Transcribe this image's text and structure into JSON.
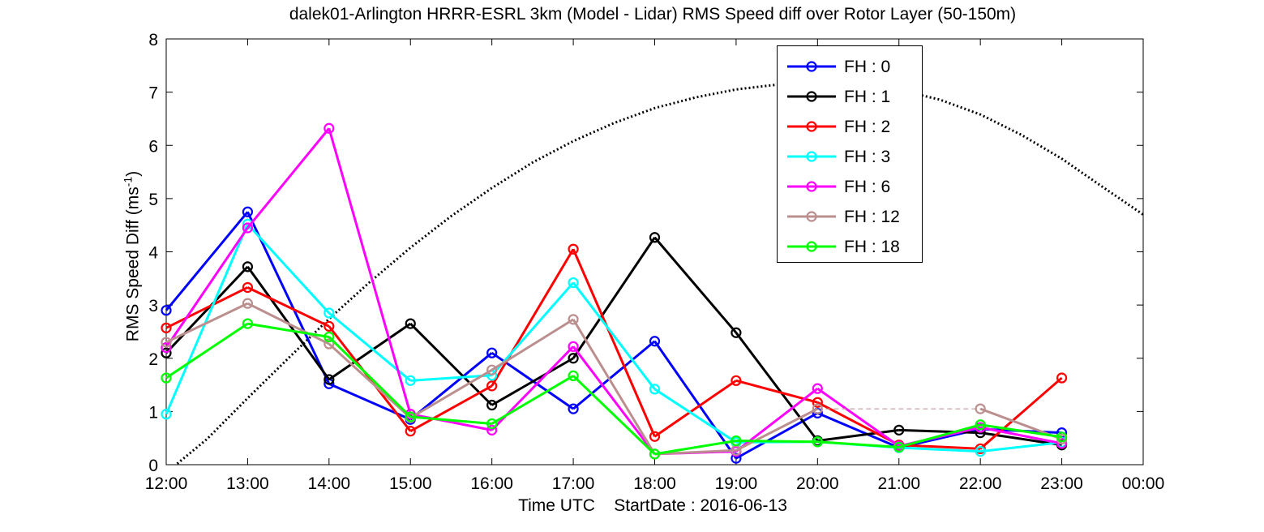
{
  "chart_data": {
    "type": "line",
    "title": "dalek01-Arlington HRRR-ESRL 3km (Model - Lidar) RMS Speed diff over Rotor Layer (50-150m)",
    "xlabel": "Time UTC    StartDate : 2016-06-13",
    "ylabel": "RMS Speed Diff (ms",
    "ylabel_sup": "-1",
    "ylabel_tail": ")",
    "x_ticks": [
      "12:00",
      "13:00",
      "14:00",
      "15:00",
      "16:00",
      "17:00",
      "18:00",
      "19:00",
      "20:00",
      "21:00",
      "22:00",
      "23:00",
      "00:00"
    ],
    "y_ticks": [
      "0",
      "1",
      "2",
      "3",
      "4",
      "5",
      "6",
      "7",
      "8"
    ],
    "ylim": [
      0,
      8
    ],
    "grid": false,
    "legend_position": "top-right",
    "series": [
      {
        "name": "FH : 0",
        "color": "#0000ff",
        "values": [
          2.9,
          4.75,
          1.52,
          0.85,
          2.1,
          1.05,
          2.32,
          0.12,
          0.97,
          0.32,
          0.67,
          0.6
        ]
      },
      {
        "name": "FH : 1",
        "color": "#000000",
        "values": [
          2.1,
          3.72,
          1.6,
          2.65,
          1.12,
          2.0,
          4.27,
          2.48,
          0.45,
          0.65,
          0.6,
          0.37
        ]
      },
      {
        "name": "FH : 2",
        "color": "#ff0000",
        "values": [
          2.57,
          3.33,
          2.6,
          0.63,
          1.48,
          4.05,
          0.53,
          1.58,
          1.17,
          0.37,
          0.3,
          1.63
        ]
      },
      {
        "name": "FH : 3",
        "color": "#00ffff",
        "values": [
          0.95,
          4.52,
          2.85,
          1.58,
          1.68,
          3.42,
          1.42,
          0.42,
          0.43,
          0.32,
          0.25,
          0.42
        ]
      },
      {
        "name": "FH : 6",
        "color": "#ff00ff",
        "values": [
          2.2,
          4.45,
          6.32,
          0.95,
          0.65,
          2.22,
          0.2,
          0.25,
          1.43,
          0.35,
          0.7,
          0.4
        ]
      },
      {
        "name": "FH : 12",
        "color": "#bc8f8f",
        "values": [
          2.3,
          3.03,
          2.27,
          0.88,
          1.78,
          2.73,
          0.2,
          0.27,
          1.05,
          null,
          1.05,
          0.48
        ]
      },
      {
        "name": "FH : 18",
        "color": "#00ff00",
        "values": [
          1.63,
          2.65,
          2.4,
          0.9,
          0.77,
          1.67,
          0.2,
          0.45,
          0.43,
          0.33,
          0.75,
          0.52
        ]
      }
    ],
    "reference_curve": {
      "style": "dotted",
      "color": "#000000",
      "note": "solar elevation style curve",
      "x": [
        0.0,
        0.12,
        0.5,
        1.0,
        1.5,
        2.0,
        2.5,
        3.0,
        3.5,
        4.0,
        4.5,
        5.0,
        5.5,
        6.0,
        6.5,
        7.0,
        7.5,
        8.0,
        8.5,
        9.0,
        9.5,
        10.0,
        10.5,
        11.0,
        11.5,
        12.0
      ],
      "y": [
        -0.3,
        0.0,
        0.48,
        1.25,
        2.0,
        2.74,
        3.43,
        4.08,
        4.67,
        5.2,
        5.68,
        6.08,
        6.42,
        6.7,
        6.9,
        7.05,
        7.14,
        7.17,
        7.15,
        7.04,
        6.86,
        6.58,
        6.2,
        5.75,
        5.22,
        4.7
      ]
    }
  }
}
